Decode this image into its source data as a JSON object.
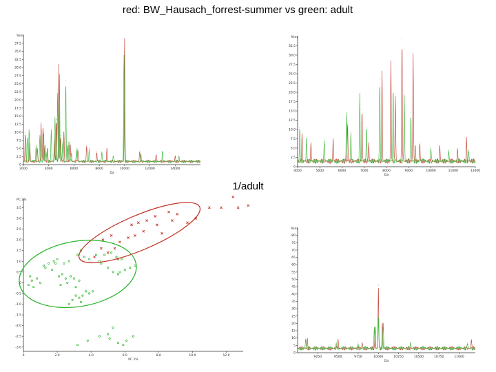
{
  "slide": {
    "title": "red: BW_Hausach_forrest-summer vs green: adult",
    "subtitle": "1/adult"
  },
  "colors": {
    "red": "#c0392b",
    "green": "#2fb52f",
    "axis": "#333333"
  },
  "chart_data": [
    {
      "type": "line",
      "panel": "full-spectrum",
      "ylabel": "%Int",
      "xlabel": "Da",
      "xlim": [
        2000,
        16000
      ],
      "ylim": [
        0,
        40
      ],
      "xticks": [
        2000,
        4000,
        6000,
        8000,
        10000,
        12000,
        14000
      ],
      "xtick_labels": [
        "2000",
        "4000",
        "6000",
        "8000",
        "10000",
        "12000",
        "14000"
      ],
      "yticks": [
        0,
        2.5,
        5,
        7.5,
        10,
        12.5,
        15,
        17.5,
        20,
        22.5,
        25,
        27.5,
        30,
        32.5,
        35,
        37.5
      ],
      "ytick_labels": [
        "0",
        "2.5",
        "5.0",
        "7.5",
        "10.0",
        "12.5",
        "15.0",
        "17.5",
        "20.0",
        "22.5",
        "25.0",
        "27.5",
        "30.0",
        "32.5",
        "35.0",
        "37.5"
      ],
      "baseline": 1.0,
      "series": [
        {
          "color": "red",
          "peaks": [
            [
              2150,
              9
            ],
            [
              2500,
              6
            ],
            [
              3100,
              4
            ],
            [
              3400,
              12
            ],
            [
              3550,
              11
            ],
            [
              3700,
              5
            ],
            [
              3900,
              4
            ],
            [
              4450,
              7
            ],
            [
              4600,
              13
            ],
            [
              4800,
              30
            ],
            [
              4950,
              8
            ],
            [
              5200,
              9
            ],
            [
              5500,
              5
            ],
            [
              5700,
              6
            ],
            [
              6300,
              4
            ],
            [
              7000,
              5
            ],
            [
              7800,
              3
            ],
            [
              8600,
              4
            ],
            [
              10000,
              38
            ],
            [
              11200,
              3
            ],
            [
              12500,
              2
            ],
            [
              14000,
              1.5
            ]
          ]
        },
        {
          "color": "green",
          "peaks": [
            [
              2300,
              7
            ],
            [
              2450,
              10
            ],
            [
              3000,
              5
            ],
            [
              3300,
              8
            ],
            [
              3600,
              9
            ],
            [
              3800,
              3
            ],
            [
              4200,
              10
            ],
            [
              4500,
              14
            ],
            [
              4700,
              22
            ],
            [
              4850,
              27
            ],
            [
              5100,
              6
            ],
            [
              5350,
              25
            ],
            [
              5600,
              6
            ],
            [
              5800,
              3
            ],
            [
              6200,
              4
            ],
            [
              7200,
              4
            ],
            [
              8200,
              3
            ],
            [
              9100,
              2
            ],
            [
              9950,
              34
            ],
            [
              11300,
              2
            ],
            [
              13000,
              3
            ],
            [
              14300,
              1.5
            ]
          ]
        }
      ]
    },
    {
      "type": "line",
      "panel": "zoom-1",
      "ylabel": "%Int",
      "xlabel": "Da",
      "xlim": [
        4000,
        12000
      ],
      "ylim": [
        0,
        35
      ],
      "xticks": [
        4000,
        5000,
        6000,
        7000,
        8000,
        9000,
        10000,
        11000,
        12000
      ],
      "xtick_labels": [
        "4000",
        "5000",
        "6000",
        "7000",
        "8000",
        "9000",
        "10000",
        "11000",
        "12000"
      ],
      "yticks": [
        0,
        2.5,
        5,
        7.5,
        10,
        12.5,
        15,
        17.5,
        20,
        22.5,
        25,
        27.5,
        30,
        32.5
      ],
      "ytick_labels": [
        "0",
        "2.5",
        "5.0",
        "7.5",
        "10.0",
        "12.5",
        "15.0",
        "17.5",
        "20.0",
        "22.5",
        "25.0",
        "27.5",
        "30.0",
        "32.5"
      ],
      "baseline": 1.5,
      "series": [
        {
          "color": "red",
          "peaks": [
            [
              4200,
              7
            ],
            [
              4600,
              5
            ],
            [
              5600,
              6
            ],
            [
              6250,
              10
            ],
            [
              6900,
              14
            ],
            [
              7200,
              5
            ],
            [
              7800,
              24
            ],
            [
              8200,
              27
            ],
            [
              8400,
              18
            ],
            [
              8700,
              33
            ],
            [
              9200,
              29
            ],
            [
              9500,
              5
            ],
            [
              10400,
              4
            ],
            [
              11200,
              3
            ],
            [
              11600,
              6
            ]
          ]
        },
        {
          "color": "green",
          "peaks": [
            [
              4100,
              9
            ],
            [
              4400,
              6
            ],
            [
              5200,
              6
            ],
            [
              6200,
              13
            ],
            [
              6400,
              8
            ],
            [
              6800,
              18
            ],
            [
              7100,
              9
            ],
            [
              7700,
              22
            ],
            [
              8300,
              20
            ],
            [
              8800,
              18
            ],
            [
              9100,
              13
            ],
            [
              9300,
              4
            ],
            [
              10000,
              4
            ],
            [
              10800,
              3
            ],
            [
              11700,
              3
            ]
          ]
        }
      ]
    },
    {
      "type": "scatter",
      "panel": "pca",
      "ylabel": "PC 2%",
      "xlabel": "PC 1%",
      "xlim": [
        0,
        13
      ],
      "ylim": [
        -3.2,
        3.9
      ],
      "xticks": [
        0,
        2,
        4,
        6,
        8,
        10,
        12
      ],
      "xtick_labels": [
        "0",
        "2.0",
        "4.0",
        "6.0",
        "8.0",
        "10.0",
        "12.0"
      ],
      "yticks": [
        -3,
        -2.5,
        -2,
        -1.5,
        -1,
        -0.5,
        0,
        0.5,
        1,
        1.5,
        2,
        2.5,
        3,
        3.5
      ],
      "ytick_labels": [
        "-3.0",
        "-2.5",
        "-2.0",
        "-1.5",
        "-1.0",
        "-0.5",
        "0",
        "0.5",
        "1.0",
        "1.5",
        "2.0",
        "2.5",
        "3.0",
        "3.5"
      ],
      "series": [
        {
          "color": "red",
          "marker": "x",
          "points": [
            [
              4.6,
              1.6
            ],
            [
              5.2,
              2.2
            ],
            [
              5.4,
              1.6
            ],
            [
              5.6,
              1.1
            ],
            [
              4.7,
              2.0
            ],
            [
              5.7,
              1.9
            ],
            [
              6.2,
              2.1
            ],
            [
              6.4,
              2.7
            ],
            [
              6.8,
              2.8
            ],
            [
              7.1,
              2.4
            ],
            [
              7.3,
              2.9
            ],
            [
              7.8,
              3.1
            ],
            [
              7.9,
              2.7
            ],
            [
              8.2,
              2.3
            ],
            [
              8.6,
              3.3
            ],
            [
              9.1,
              3.2
            ],
            [
              9.7,
              2.8
            ],
            [
              10.2,
              3.0
            ],
            [
              11.0,
              3.5
            ],
            [
              11.7,
              3.5
            ],
            [
              12.4,
              4.0
            ],
            [
              12.7,
              3.5
            ],
            [
              13.3,
              3.6
            ],
            [
              4.2,
              1.2
            ],
            [
              5.0,
              1.4
            ],
            [
              6.6,
              2.2
            ],
            [
              8.8,
              2.9
            ]
          ]
        },
        {
          "color": "green",
          "marker": "o",
          "points": [
            [
              0.3,
              -0.1
            ],
            [
              0.5,
              0.1
            ],
            [
              0.6,
              -0.2
            ],
            [
              0.8,
              0.2
            ],
            [
              1.0,
              0.0
            ],
            [
              0.4,
              0.3
            ],
            [
              1.2,
              0.8
            ],
            [
              1.5,
              0.9
            ],
            [
              1.8,
              1.0
            ],
            [
              1.3,
              0.7
            ],
            [
              1.7,
              0.6
            ],
            [
              2.0,
              1.1
            ],
            [
              1.9,
              0.9
            ],
            [
              2.4,
              0.9
            ],
            [
              2.7,
              1.0
            ],
            [
              3.2,
              1.3
            ],
            [
              3.6,
              1.2
            ],
            [
              3.9,
              1.1
            ],
            [
              4.3,
              1.3
            ],
            [
              3.4,
              1.5
            ],
            [
              4.5,
              1.0
            ],
            [
              2.1,
              0.3
            ],
            [
              2.3,
              0.4
            ],
            [
              2.5,
              0.2
            ],
            [
              2.8,
              0.3
            ],
            [
              3.0,
              0.2
            ],
            [
              3.3,
              0.1
            ],
            [
              2.2,
              -0.1
            ],
            [
              2.6,
              0.0
            ],
            [
              3.1,
              -0.2
            ],
            [
              2.9,
              -0.8
            ],
            [
              3.1,
              -0.6
            ],
            [
              3.3,
              -0.7
            ],
            [
              3.5,
              -0.6
            ],
            [
              3.7,
              -0.4
            ],
            [
              3.9,
              -0.5
            ],
            [
              4.1,
              -0.4
            ],
            [
              3.4,
              -0.9
            ],
            [
              2.7,
              -1.0
            ],
            [
              4.6,
              0.9
            ],
            [
              4.8,
              1.3
            ],
            [
              5.2,
              1.4
            ],
            [
              5.5,
              1.2
            ],
            [
              5.0,
              0.7
            ],
            [
              5.3,
              0.5
            ],
            [
              5.6,
              0.4
            ],
            [
              6.0,
              0.6
            ],
            [
              6.3,
              0.7
            ],
            [
              6.6,
              0.8
            ],
            [
              5.8,
              1.1
            ],
            [
              5.7,
              0.5
            ],
            [
              5.0,
              -2.4
            ],
            [
              5.3,
              -2.1
            ],
            [
              5.1,
              -2.6
            ],
            [
              5.6,
              -2.8
            ],
            [
              5.9,
              -2.9
            ],
            [
              6.1,
              -2.7
            ],
            [
              6.5,
              -2.5
            ],
            [
              4.5,
              -2.5
            ],
            [
              3.2,
              -2.9
            ],
            [
              3.8,
              -2.7
            ]
          ]
        }
      ]
    },
    {
      "type": "line",
      "panel": "zoom-2",
      "ylabel": "%Int",
      "xlabel": "Da",
      "xlim": [
        9000,
        11200
      ],
      "ylim": [
        0,
        85
      ],
      "xticks": [
        9250,
        9500,
        9750,
        10000,
        10250,
        10500,
        10750,
        11000
      ],
      "xtick_labels": [
        "9250",
        "9500",
        "9750",
        "10000",
        "10250",
        "10500",
        "10750",
        "11000"
      ],
      "yticks": [
        0,
        5,
        10,
        15,
        20,
        25,
        30,
        35,
        40,
        45,
        50,
        55,
        60,
        65,
        70,
        75,
        80
      ],
      "ytick_labels": [
        "0",
        "5",
        "10",
        "15",
        "20",
        "25",
        "30",
        "35",
        "40",
        "45",
        "50",
        "55",
        "60",
        "65",
        "70",
        "75",
        "80"
      ],
      "baseline": 3,
      "series": [
        {
          "color": "red",
          "peaks": [
            [
              9120,
              6
            ],
            [
              9500,
              6
            ],
            [
              9800,
              4
            ],
            [
              9960,
              15
            ],
            [
              10000,
              43
            ],
            [
              10050,
              18
            ],
            [
              11150,
              6
            ]
          ]
        },
        {
          "color": "green",
          "peaks": [
            [
              9100,
              7
            ],
            [
              9480,
              4
            ],
            [
              9750,
              4
            ],
            [
              9950,
              14
            ],
            [
              10000,
              22
            ],
            [
              10060,
              17
            ],
            [
              10400,
              4
            ],
            [
              11100,
              4
            ]
          ]
        }
      ]
    }
  ]
}
